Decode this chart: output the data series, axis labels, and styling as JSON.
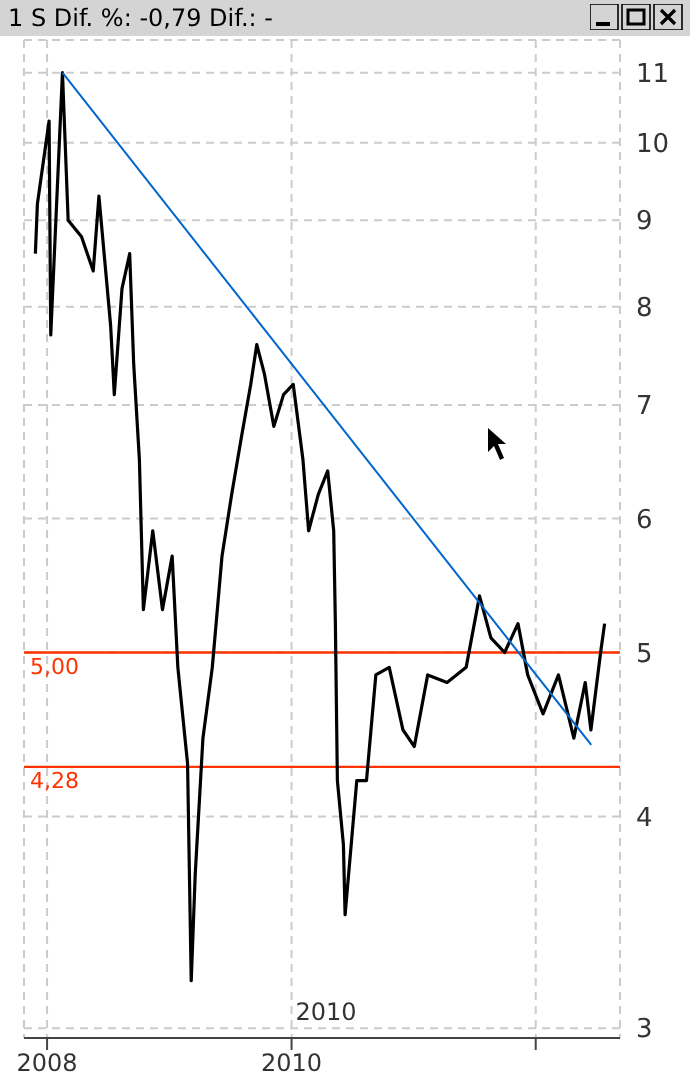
{
  "chart_data": {
    "type": "line",
    "title": "1 S Dif. %: -0,79 Dif.: -",
    "log": true,
    "grid": true,
    "xlim": [
      "2007-10-24",
      "2012-09-09"
    ],
    "xticks": [
      "2008",
      "2010",
      {
        "value": "2012",
        "label": null
      }
    ],
    "ylim": [
      2.96,
      11.5
    ],
    "yticks": [
      3,
      4,
      5,
      6,
      7,
      8,
      9,
      10,
      11
    ],
    "series": [
      {
        "color": "#000000",
        "x": [
          "2007-11-27",
          "2007-12-03",
          "2008-01-07",
          "2008-01-12",
          "2008-02-16",
          "2008-03-04",
          "2008-04-13",
          "2008-05-18",
          "2008-06-04",
          "2008-07-09",
          "2008-07-20",
          "2008-08-12",
          "2008-09-04",
          "2008-09-16",
          "2008-10-03",
          "2008-10-15",
          "2008-11-12",
          "2008-12-11",
          "2009-01-09",
          "2009-01-26",
          "2009-02-24",
          "2009-03-07",
          "2009-03-19",
          "2009-04-11",
          "2009-05-09",
          "2009-06-07",
          "2009-07-06",
          "2009-08-04",
          "2009-09-01",
          "2009-09-19",
          "2009-10-12",
          "2009-11-09",
          "2009-12-08",
          "2010-01-06",
          "2010-02-04",
          "2010-02-21",
          "2010-03-22",
          "2010-04-19",
          "2010-05-07",
          "2010-05-12",
          "2010-05-18",
          "2010-06-05",
          "2010-06-10",
          "2010-07-15",
          "2010-08-13",
          "2010-09-10",
          "2010-10-20",
          "2010-11-30",
          "2011-01-03",
          "2011-02-12",
          "2011-04-11",
          "2011-06-07",
          "2011-07-17",
          "2011-08-20",
          "2011-09-30",
          "2011-11-09",
          "2011-12-08",
          "2012-01-23",
          "2012-03-09",
          "2012-04-24",
          "2012-05-28",
          "2012-06-14",
          "2012-07-13",
          "2012-07-25"
        ],
        "values": [
          8.6,
          9.2,
          10.3,
          7.7,
          11.0,
          9.0,
          8.8,
          8.4,
          9.3,
          7.8,
          7.1,
          8.2,
          8.6,
          7.4,
          6.5,
          5.3,
          5.9,
          5.3,
          5.7,
          4.9,
          4.3,
          3.2,
          3.7,
          4.45,
          4.9,
          5.7,
          6.2,
          6.7,
          7.2,
          7.6,
          7.3,
          6.8,
          7.1,
          7.2,
          6.5,
          5.9,
          6.2,
          6.4,
          5.9,
          5.2,
          4.2,
          3.85,
          3.5,
          4.2,
          4.2,
          4.85,
          4.9,
          4.5,
          4.4,
          4.85,
          4.8,
          4.9,
          5.4,
          5.1,
          5.0,
          5.2,
          4.85,
          4.6,
          4.85,
          4.45,
          4.8,
          4.5,
          5.0,
          5.2
        ]
      },
      {
        "color": "#0066cc",
        "x": [
          "2008-02-16",
          "2012-06-15"
        ],
        "values": [
          11.0,
          4.41
        ]
      }
    ],
    "ref_lines": [
      {
        "axis": "y",
        "value": 5,
        "label": "5,00",
        "color": "#ff3300"
      },
      {
        "axis": "y",
        "value": 4.28,
        "label": "4,28",
        "color": "#ff3300"
      }
    ],
    "annotations": [
      "2010"
    ]
  }
}
